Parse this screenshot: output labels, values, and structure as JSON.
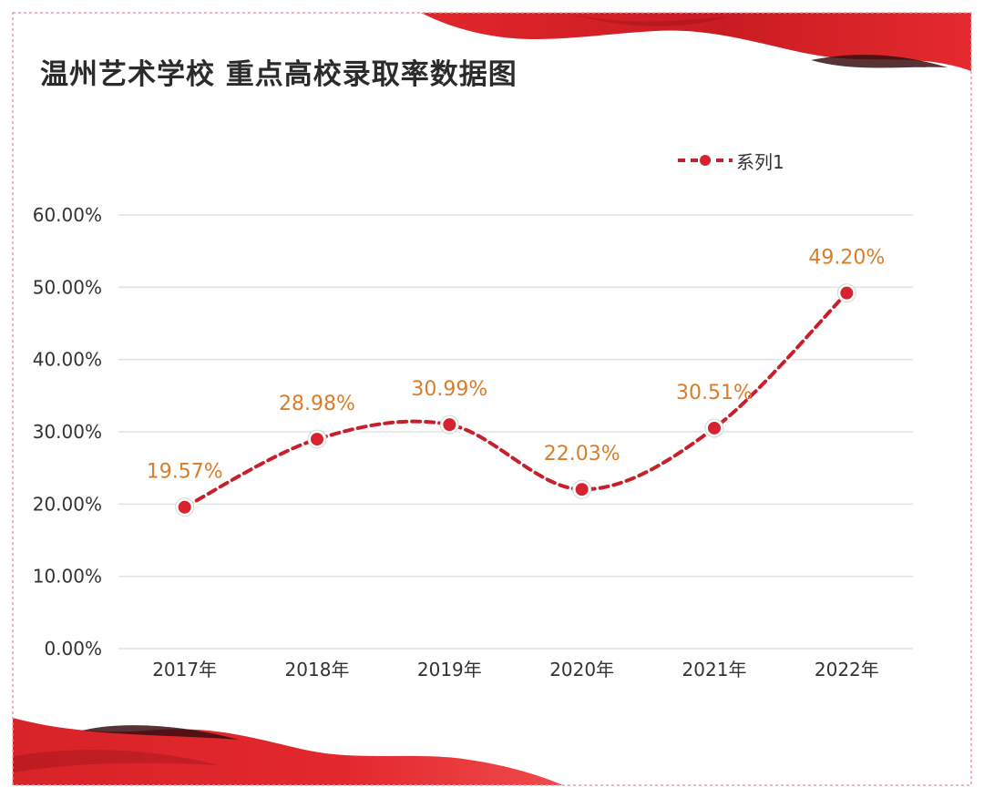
{
  "colors": {
    "line": "#c8202a",
    "marker": "#d7232f",
    "data_label": "#d97d2a",
    "gridline": "#e2e2e2",
    "ribbon": "#d8232a",
    "border": "#e4a1a6"
  },
  "chart_data": {
    "type": "line",
    "title": "温州艺术学校 重点高校录取率数据图",
    "categories": [
      "2017年",
      "2018年",
      "2019年",
      "2020年",
      "2021年",
      "2022年"
    ],
    "series": [
      {
        "name": "系列1",
        "values": [
          19.57,
          28.98,
          30.99,
          22.03,
          30.51,
          49.2
        ],
        "data_labels": [
          "19.57%",
          "28.98%",
          "30.99%",
          "22.03%",
          "30.51%",
          "49.20%"
        ]
      }
    ],
    "ylim": [
      0,
      60
    ],
    "y_ticks": [
      0,
      10,
      20,
      30,
      40,
      50,
      60
    ],
    "y_tick_labels": [
      "0.00%",
      "10.00%",
      "20.00%",
      "30.00%",
      "40.00%",
      "50.00%",
      "60.00%"
    ],
    "grid": true,
    "smooth": true,
    "line_style": "dashed",
    "legend_position": "top-right"
  }
}
